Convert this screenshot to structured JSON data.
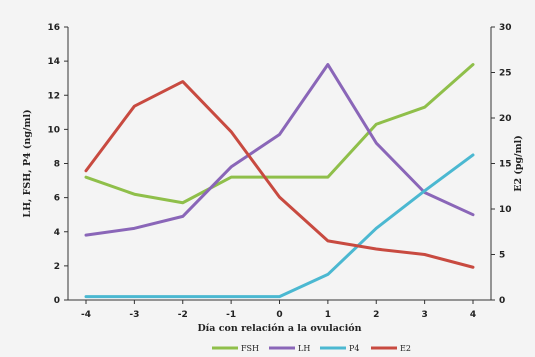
{
  "chart_data": {
    "type": "line",
    "title": "",
    "x": [
      -4,
      -3,
      -2,
      -1,
      0,
      1,
      2,
      3,
      4
    ],
    "xlabel": "Día con relación a la ovulación",
    "ylabel_left": "LH, FSH, P4 (ng/ml)",
    "ylabel_right": "E2 (pg/ml)",
    "ylim_left": [
      0,
      16
    ],
    "yticks_left": [
      0,
      2,
      4,
      6,
      8,
      10,
      12,
      14,
      16
    ],
    "ylim_right": [
      0,
      30
    ],
    "yticks_right": [
      0,
      5,
      10,
      15,
      20,
      25,
      30
    ],
    "grid": false,
    "legend_position": "bottom",
    "series": [
      {
        "name": "FSH",
        "axis": "left",
        "color": "#8fbf4a",
        "values": [
          7.2,
          6.2,
          5.7,
          7.2,
          7.2,
          7.2,
          10.3,
          11.3,
          13.8
        ]
      },
      {
        "name": "LH",
        "axis": "left",
        "color": "#8a66b8",
        "values": [
          3.8,
          4.2,
          4.9,
          7.8,
          9.7,
          13.8,
          9.2,
          6.3,
          5.0
        ]
      },
      {
        "name": "P4",
        "axis": "left",
        "color": "#4bb8d1",
        "values": [
          0.2,
          0.2,
          0.2,
          0.2,
          0.2,
          1.5,
          4.2,
          6.4,
          8.5
        ]
      },
      {
        "name": "E2",
        "axis": "right",
        "color": "#c84a40",
        "values": [
          14.2,
          21.3,
          24.0,
          18.5,
          11.3,
          6.5,
          5.6,
          5.0,
          3.6
        ]
      }
    ]
  }
}
